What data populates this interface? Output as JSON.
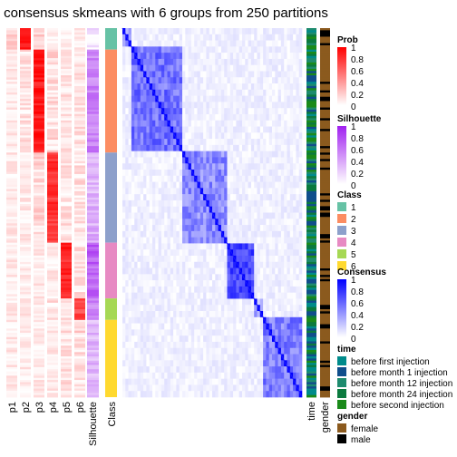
{
  "title": "consensus skmeans with 6 groups from 250 partitions",
  "chart_data": {
    "type": "heatmap",
    "title": "consensus skmeans with 6 groups from 250 partitions",
    "columns": [
      "p1",
      "p2",
      "p3",
      "p4",
      "p5",
      "p6",
      "Silhouette",
      "Class"
    ],
    "side_annotations": [
      "time",
      "gender"
    ],
    "class_sizes": [
      10,
      48,
      42,
      26,
      10,
      36
    ],
    "legends": {
      "prob": {
        "title": "Prob",
        "ticks": [
          "1",
          "0.8",
          "0.6",
          "0.4",
          "0.2",
          "0"
        ],
        "colors": [
          "#ff0000",
          "#ffffff"
        ]
      },
      "silhouette": {
        "title": "Silhouette",
        "ticks": [
          "1",
          "0.8",
          "0.6",
          "0.4",
          "0.2",
          "0"
        ],
        "colors": [
          "#a020f0",
          "#ffffff"
        ]
      },
      "class": {
        "title": "Class",
        "labels": [
          "1",
          "2",
          "3",
          "4",
          "5",
          "6"
        ],
        "colors": [
          "#66c2a5",
          "#fc8d62",
          "#8da0cb",
          "#e78ac3",
          "#a6d854",
          "#ffd92f"
        ]
      },
      "consensus": {
        "title": "Consensus",
        "ticks": [
          "1",
          "0.8",
          "0.6",
          "0.4",
          "0.2",
          "0"
        ],
        "colors": [
          "#0000ff",
          "#ffffff"
        ]
      },
      "time": {
        "title": "time",
        "labels": [
          "before first injection",
          "before month 1 injection",
          "before month 12 injection",
          "before month 24 injection",
          "before second injection"
        ],
        "colors": [
          "#008b8b",
          "#104e8b",
          "#1e8b6e",
          "#0b7a3e",
          "#1a8a1a"
        ]
      },
      "gender": {
        "title": "gender",
        "labels": [
          "female",
          "male"
        ],
        "colors": [
          "#8b5a1e",
          "#000000"
        ]
      }
    }
  }
}
